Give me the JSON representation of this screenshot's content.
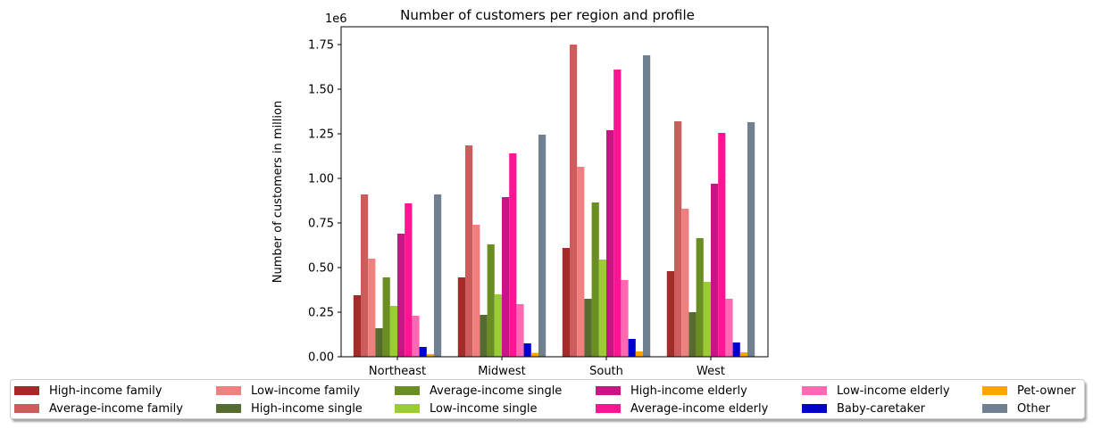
{
  "chart_data": {
    "type": "bar",
    "title": "Number of customers per region and profile",
    "ylabel": "Number of customers in million",
    "xlabel": "",
    "offset_label": "1e6",
    "categories": [
      "Northeast",
      "Midwest",
      "South",
      "West"
    ],
    "ylim": [
      0,
      1.85
    ],
    "yticks": [
      0.0,
      0.25,
      0.5,
      0.75,
      1.0,
      1.25,
      1.5,
      1.75
    ],
    "ytick_labels": [
      "0.00",
      "0.25",
      "0.50",
      "0.75",
      "1.00",
      "1.25",
      "1.50",
      "1.75"
    ],
    "grid": false,
    "legend_position": "bottom-center",
    "series": [
      {
        "name": "High-income family",
        "color": "#a52a2a",
        "values": [
          0.345,
          0.445,
          0.61,
          0.48
        ]
      },
      {
        "name": "Average-income family",
        "color": "#cd5c5c",
        "values": [
          0.91,
          1.185,
          1.75,
          1.32
        ]
      },
      {
        "name": "Low-income family",
        "color": "#f08080",
        "values": [
          0.55,
          0.74,
          1.065,
          0.83
        ]
      },
      {
        "name": "High-income single",
        "color": "#556b2f",
        "values": [
          0.16,
          0.235,
          0.325,
          0.25
        ]
      },
      {
        "name": "Average-income single",
        "color": "#6b8e23",
        "values": [
          0.445,
          0.63,
          0.865,
          0.665
        ]
      },
      {
        "name": "Low-income single",
        "color": "#9acd32",
        "values": [
          0.285,
          0.35,
          0.545,
          0.42
        ]
      },
      {
        "name": "High-income elderly",
        "color": "#c71585",
        "values": [
          0.69,
          0.895,
          1.27,
          0.97
        ]
      },
      {
        "name": "Average-income elderly",
        "color": "#ff1493",
        "values": [
          0.86,
          1.14,
          1.61,
          1.255
        ]
      },
      {
        "name": "Low-income elderly",
        "color": "#ff69b4",
        "values": [
          0.23,
          0.295,
          0.43,
          0.325
        ]
      },
      {
        "name": "Baby-caretaker",
        "color": "#0000cd",
        "values": [
          0.055,
          0.075,
          0.1,
          0.08
        ]
      },
      {
        "name": "Pet-owner",
        "color": "#ffa500",
        "values": [
          0.015,
          0.022,
          0.03,
          0.025
        ]
      },
      {
        "name": "Other",
        "color": "#708090",
        "values": [
          0.91,
          1.245,
          1.69,
          1.315
        ]
      }
    ]
  }
}
